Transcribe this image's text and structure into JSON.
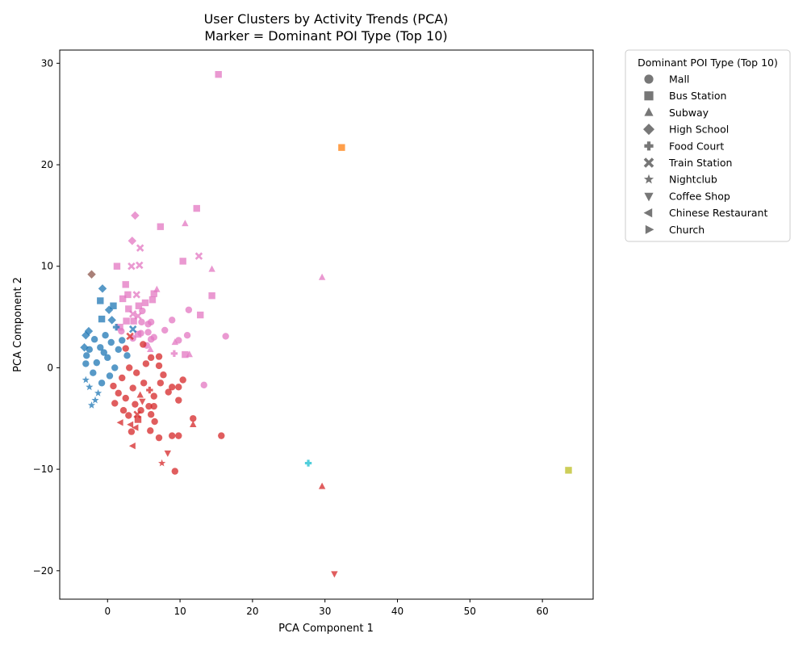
{
  "chart_data": {
    "type": "scatter",
    "title": "User Clusters by Activity Trends (PCA)",
    "subtitle": "Marker = Dominant POI Type (Top 10)",
    "xlabel": "PCA Component 1",
    "ylabel": "PCA Component 2",
    "xlim": [
      -6.6,
      67.0
    ],
    "ylim": [
      -22.8,
      31.3
    ],
    "xticks": [
      0,
      10,
      20,
      30,
      40,
      50,
      60
    ],
    "yticks": [
      -20,
      -10,
      0,
      10,
      20,
      30
    ],
    "grid": false,
    "legend": {
      "title": "Dominant POI Type (Top 10)",
      "placement": "outside-top-right",
      "entries": [
        {
          "label": "Mall",
          "marker": "circle"
        },
        {
          "label": "Bus Station",
          "marker": "square"
        },
        {
          "label": "Subway",
          "marker": "triangle-up"
        },
        {
          "label": "High School",
          "marker": "diamond"
        },
        {
          "label": "Food Court",
          "marker": "plus"
        },
        {
          "label": "Train Station",
          "marker": "x"
        },
        {
          "label": "Nightclub",
          "marker": "star"
        },
        {
          "label": "Coffee Shop",
          "marker": "triangle-down"
        },
        {
          "label": "Chinese Restaurant",
          "marker": "triangle-left"
        },
        {
          "label": "Church",
          "marker": "triangle-right"
        }
      ]
    },
    "cluster_colors": {
      "blue": "#1f77b4",
      "red": "#d62728",
      "pink": "#e377c2",
      "orange": "#ff7f0e",
      "brown": "#8c564b",
      "cyan": "#17becf",
      "olive": "#bcbd22"
    },
    "points": [
      {
        "x": 63.6,
        "y": -10.1,
        "marker": "square",
        "color": "olive"
      },
      {
        "x": 32.3,
        "y": 21.7,
        "marker": "square",
        "color": "orange"
      },
      {
        "x": 27.7,
        "y": -9.4,
        "marker": "plus",
        "color": "cyan"
      },
      {
        "x": -2.2,
        "y": 9.2,
        "marker": "diamond",
        "color": "brown"
      },
      {
        "x": 31.3,
        "y": -20.3,
        "marker": "triangle-down",
        "color": "red"
      },
      {
        "x": 29.6,
        "y": -11.7,
        "marker": "triangle-up",
        "color": "red"
      },
      {
        "x": 15.3,
        "y": 28.9,
        "marker": "square",
        "color": "pink"
      },
      {
        "x": 12.3,
        "y": 15.7,
        "marker": "square",
        "color": "pink"
      },
      {
        "x": 3.8,
        "y": 15.0,
        "marker": "diamond",
        "color": "pink"
      },
      {
        "x": 10.7,
        "y": 14.2,
        "marker": "triangle-up",
        "color": "pink"
      },
      {
        "x": 7.3,
        "y": 13.9,
        "marker": "square",
        "color": "pink"
      },
      {
        "x": 3.4,
        "y": 12.5,
        "marker": "diamond",
        "color": "pink"
      },
      {
        "x": 4.5,
        "y": 11.8,
        "marker": "x",
        "color": "pink"
      },
      {
        "x": 12.6,
        "y": 11.0,
        "marker": "x",
        "color": "pink"
      },
      {
        "x": 10.4,
        "y": 10.5,
        "marker": "square",
        "color": "pink"
      },
      {
        "x": 4.4,
        "y": 10.1,
        "marker": "x",
        "color": "pink"
      },
      {
        "x": 3.3,
        "y": 10.0,
        "marker": "x",
        "color": "pink"
      },
      {
        "x": 1.3,
        "y": 10.0,
        "marker": "square",
        "color": "pink"
      },
      {
        "x": 14.4,
        "y": 9.7,
        "marker": "triangle-up",
        "color": "pink"
      },
      {
        "x": 29.6,
        "y": 8.9,
        "marker": "triangle-up",
        "color": "pink"
      },
      {
        "x": 2.5,
        "y": 8.2,
        "marker": "square",
        "color": "pink"
      },
      {
        "x": 6.8,
        "y": 7.7,
        "marker": "triangle-up",
        "color": "pink"
      },
      {
        "x": 6.4,
        "y": 7.3,
        "marker": "square",
        "color": "pink"
      },
      {
        "x": 2.8,
        "y": 7.2,
        "marker": "square",
        "color": "pink"
      },
      {
        "x": 4.0,
        "y": 7.2,
        "marker": "x",
        "color": "pink"
      },
      {
        "x": 14.4,
        "y": 7.1,
        "marker": "square",
        "color": "pink"
      },
      {
        "x": 2.1,
        "y": 6.8,
        "marker": "square",
        "color": "pink"
      },
      {
        "x": 6.2,
        "y": 6.7,
        "marker": "square",
        "color": "pink"
      },
      {
        "x": 5.2,
        "y": 6.4,
        "marker": "square",
        "color": "pink"
      },
      {
        "x": 4.3,
        "y": 6.1,
        "marker": "square",
        "color": "pink"
      },
      {
        "x": 2.9,
        "y": 5.8,
        "marker": "square",
        "color": "pink"
      },
      {
        "x": 11.2,
        "y": 5.7,
        "marker": "circle",
        "color": "pink"
      },
      {
        "x": 4.8,
        "y": 5.6,
        "marker": "circle",
        "color": "pink"
      },
      {
        "x": 3.5,
        "y": 5.3,
        "marker": "x",
        "color": "pink"
      },
      {
        "x": 12.8,
        "y": 5.2,
        "marker": "square",
        "color": "pink"
      },
      {
        "x": 4.2,
        "y": 5.1,
        "marker": "x",
        "color": "pink"
      },
      {
        "x": 8.9,
        "y": 4.7,
        "marker": "circle",
        "color": "pink"
      },
      {
        "x": 2.6,
        "y": 4.6,
        "marker": "square",
        "color": "pink"
      },
      {
        "x": 3.6,
        "y": 4.6,
        "marker": "square",
        "color": "pink"
      },
      {
        "x": 4.7,
        "y": 4.5,
        "marker": "circle",
        "color": "pink"
      },
      {
        "x": 6.0,
        "y": 4.5,
        "marker": "circle",
        "color": "pink"
      },
      {
        "x": 5.6,
        "y": 4.3,
        "marker": "circle",
        "color": "pink"
      },
      {
        "x": 1.7,
        "y": 4.0,
        "marker": "square",
        "color": "pink"
      },
      {
        "x": 7.9,
        "y": 3.7,
        "marker": "circle",
        "color": "pink"
      },
      {
        "x": 1.9,
        "y": 3.6,
        "marker": "circle",
        "color": "pink"
      },
      {
        "x": 5.6,
        "y": 3.5,
        "marker": "circle",
        "color": "pink"
      },
      {
        "x": 4.6,
        "y": 3.4,
        "marker": "circle",
        "color": "pink"
      },
      {
        "x": 4.2,
        "y": 3.3,
        "marker": "square",
        "color": "pink"
      },
      {
        "x": 11.0,
        "y": 3.2,
        "marker": "circle",
        "color": "pink"
      },
      {
        "x": 16.3,
        "y": 3.1,
        "marker": "circle",
        "color": "pink"
      },
      {
        "x": 6.4,
        "y": 3.0,
        "marker": "circle",
        "color": "pink"
      },
      {
        "x": 3.5,
        "y": 2.9,
        "marker": "circle",
        "color": "pink"
      },
      {
        "x": 6.0,
        "y": 2.8,
        "marker": "circle",
        "color": "pink"
      },
      {
        "x": 9.8,
        "y": 2.7,
        "marker": "circle",
        "color": "pink"
      },
      {
        "x": 9.3,
        "y": 2.5,
        "marker": "triangle-up",
        "color": "pink"
      },
      {
        "x": 5.4,
        "y": 2.2,
        "marker": "circle",
        "color": "pink"
      },
      {
        "x": 5.9,
        "y": 1.8,
        "marker": "triangle-up",
        "color": "pink"
      },
      {
        "x": 9.2,
        "y": 1.4,
        "marker": "plus",
        "color": "pink"
      },
      {
        "x": 10.7,
        "y": 1.3,
        "marker": "square",
        "color": "pink"
      },
      {
        "x": 11.3,
        "y": 1.3,
        "marker": "triangle-up",
        "color": "pink"
      },
      {
        "x": 13.3,
        "y": -1.7,
        "marker": "circle",
        "color": "pink"
      },
      {
        "x": -0.7,
        "y": 7.8,
        "marker": "diamond",
        "color": "blue"
      },
      {
        "x": -1.0,
        "y": 6.6,
        "marker": "square",
        "color": "blue"
      },
      {
        "x": 0.8,
        "y": 6.1,
        "marker": "square",
        "color": "blue"
      },
      {
        "x": 0.2,
        "y": 5.7,
        "marker": "diamond",
        "color": "blue"
      },
      {
        "x": -0.8,
        "y": 4.8,
        "marker": "square",
        "color": "blue"
      },
      {
        "x": 0.6,
        "y": 4.7,
        "marker": "diamond",
        "color": "blue"
      },
      {
        "x": -2.6,
        "y": 3.6,
        "marker": "diamond",
        "color": "blue"
      },
      {
        "x": -3.0,
        "y": 3.2,
        "marker": "diamond",
        "color": "blue"
      },
      {
        "x": -3.2,
        "y": 2.0,
        "marker": "diamond",
        "color": "blue"
      },
      {
        "x": -2.9,
        "y": 1.2,
        "marker": "circle",
        "color": "blue"
      },
      {
        "x": -3.0,
        "y": 0.4,
        "marker": "circle",
        "color": "blue"
      },
      {
        "x": -2.5,
        "y": -1.9,
        "marker": "star",
        "color": "blue"
      },
      {
        "x": -2.2,
        "y": -3.7,
        "marker": "star",
        "color": "blue"
      },
      {
        "x": -1.7,
        "y": -3.2,
        "marker": "star",
        "color": "blue"
      },
      {
        "x": -3.0,
        "y": -1.2,
        "marker": "star",
        "color": "blue"
      },
      {
        "x": -1.3,
        "y": -2.5,
        "marker": "star",
        "color": "blue"
      },
      {
        "x": 3.5,
        "y": 3.8,
        "marker": "x",
        "color": "blue"
      },
      {
        "x": 1.2,
        "y": 4.0,
        "marker": "plus",
        "color": "blue"
      },
      {
        "x": -1.0,
        "y": 2.0,
        "marker": "circle",
        "color": "blue"
      },
      {
        "x": -0.5,
        "y": 1.5,
        "marker": "circle",
        "color": "blue"
      },
      {
        "x": 0.0,
        "y": 1.0,
        "marker": "circle",
        "color": "blue"
      },
      {
        "x": -1.5,
        "y": 0.5,
        "marker": "circle",
        "color": "blue"
      },
      {
        "x": 0.5,
        "y": 2.5,
        "marker": "circle",
        "color": "blue"
      },
      {
        "x": 1.0,
        "y": 0.0,
        "marker": "circle",
        "color": "blue"
      },
      {
        "x": -2.0,
        "y": -0.5,
        "marker": "circle",
        "color": "blue"
      },
      {
        "x": 1.5,
        "y": 1.8,
        "marker": "circle",
        "color": "blue"
      },
      {
        "x": 2.0,
        "y": 2.7,
        "marker": "circle",
        "color": "blue"
      },
      {
        "x": -0.3,
        "y": 3.2,
        "marker": "circle",
        "color": "blue"
      },
      {
        "x": -1.8,
        "y": 2.8,
        "marker": "circle",
        "color": "blue"
      },
      {
        "x": 0.3,
        "y": -0.8,
        "marker": "circle",
        "color": "blue"
      },
      {
        "x": -0.8,
        "y": -1.5,
        "marker": "circle",
        "color": "blue"
      },
      {
        "x": 2.7,
        "y": 1.2,
        "marker": "circle",
        "color": "blue"
      },
      {
        "x": -2.5,
        "y": 1.8,
        "marker": "circle",
        "color": "blue"
      },
      {
        "x": 9.3,
        "y": -10.2,
        "marker": "circle",
        "color": "red"
      },
      {
        "x": 7.5,
        "y": -9.4,
        "marker": "star",
        "color": "red"
      },
      {
        "x": 8.3,
        "y": -8.4,
        "marker": "triangle-down",
        "color": "red"
      },
      {
        "x": 3.5,
        "y": -7.7,
        "marker": "triangle-left",
        "color": "red"
      },
      {
        "x": 15.7,
        "y": -6.7,
        "marker": "circle",
        "color": "red"
      },
      {
        "x": 9.8,
        "y": -6.7,
        "marker": "circle",
        "color": "red"
      },
      {
        "x": 8.9,
        "y": -6.7,
        "marker": "circle",
        "color": "red"
      },
      {
        "x": 7.1,
        "y": -6.9,
        "marker": "circle",
        "color": "red"
      },
      {
        "x": 3.3,
        "y": -6.3,
        "marker": "circle",
        "color": "red"
      },
      {
        "x": 5.9,
        "y": -6.2,
        "marker": "circle",
        "color": "red"
      },
      {
        "x": 11.8,
        "y": -5.6,
        "marker": "triangle-up",
        "color": "red"
      },
      {
        "x": 1.8,
        "y": -5.4,
        "marker": "triangle-left",
        "color": "red"
      },
      {
        "x": 6.5,
        "y": -5.3,
        "marker": "circle",
        "color": "red"
      },
      {
        "x": 11.8,
        "y": -5.0,
        "marker": "circle",
        "color": "red"
      },
      {
        "x": 4.2,
        "y": -5.1,
        "marker": "square",
        "color": "red"
      },
      {
        "x": 2.9,
        "y": -4.7,
        "marker": "circle",
        "color": "red"
      },
      {
        "x": 6.0,
        "y": -4.6,
        "marker": "circle",
        "color": "red"
      },
      {
        "x": 4.6,
        "y": -4.2,
        "marker": "circle",
        "color": "red"
      },
      {
        "x": 5.7,
        "y": -3.8,
        "marker": "circle",
        "color": "red"
      },
      {
        "x": 6.4,
        "y": -3.8,
        "marker": "circle",
        "color": "red"
      },
      {
        "x": 9.8,
        "y": -3.2,
        "marker": "circle",
        "color": "red"
      },
      {
        "x": 6.4,
        "y": -2.8,
        "marker": "circle",
        "color": "red"
      },
      {
        "x": 8.4,
        "y": -2.4,
        "marker": "circle",
        "color": "red"
      },
      {
        "x": 8.9,
        "y": -1.9,
        "marker": "circle",
        "color": "red"
      },
      {
        "x": 9.8,
        "y": -1.9,
        "marker": "circle",
        "color": "red"
      },
      {
        "x": 7.3,
        "y": -1.5,
        "marker": "circle",
        "color": "red"
      },
      {
        "x": 10.4,
        "y": -1.2,
        "marker": "circle",
        "color": "red"
      },
      {
        "x": 7.7,
        "y": -0.7,
        "marker": "circle",
        "color": "red"
      },
      {
        "x": 7.1,
        "y": 0.2,
        "marker": "circle",
        "color": "red"
      },
      {
        "x": 7.1,
        "y": 1.1,
        "marker": "circle",
        "color": "red"
      },
      {
        "x": 6.0,
        "y": 1.0,
        "marker": "circle",
        "color": "red"
      },
      {
        "x": 4.9,
        "y": 2.3,
        "marker": "circle",
        "color": "red"
      },
      {
        "x": 2.5,
        "y": 1.9,
        "marker": "circle",
        "color": "red"
      },
      {
        "x": 3.0,
        "y": 0.0,
        "marker": "circle",
        "color": "red"
      },
      {
        "x": 2.0,
        "y": -1.0,
        "marker": "circle",
        "color": "red"
      },
      {
        "x": 3.5,
        "y": -2.0,
        "marker": "circle",
        "color": "red"
      },
      {
        "x": 1.5,
        "y": -2.5,
        "marker": "circle",
        "color": "red"
      },
      {
        "x": 4.0,
        "y": -0.5,
        "marker": "circle",
        "color": "red"
      },
      {
        "x": 2.5,
        "y": -3.0,
        "marker": "circle",
        "color": "red"
      },
      {
        "x": 5.0,
        "y": -1.5,
        "marker": "circle",
        "color": "red"
      },
      {
        "x": 1.0,
        "y": -3.5,
        "marker": "circle",
        "color": "red"
      },
      {
        "x": 3.8,
        "y": -3.6,
        "marker": "circle",
        "color": "red"
      },
      {
        "x": 5.3,
        "y": 0.4,
        "marker": "circle",
        "color": "red"
      },
      {
        "x": 0.8,
        "y": -1.8,
        "marker": "circle",
        "color": "red"
      },
      {
        "x": 2.2,
        "y": -4.2,
        "marker": "circle",
        "color": "red"
      },
      {
        "x": 4.5,
        "y": -2.7,
        "marker": "triangle-up",
        "color": "red"
      },
      {
        "x": 3.2,
        "y": -5.6,
        "marker": "triangle-left",
        "color": "red"
      },
      {
        "x": 3.9,
        "y": -5.9,
        "marker": "triangle-left",
        "color": "red"
      },
      {
        "x": 4.8,
        "y": -3.3,
        "marker": "triangle-down",
        "color": "red"
      },
      {
        "x": 5.8,
        "y": -2.2,
        "marker": "plus",
        "color": "red"
      },
      {
        "x": 4.1,
        "y": -4.6,
        "marker": "x",
        "color": "red"
      },
      {
        "x": 3.1,
        "y": 3.1,
        "marker": "x",
        "color": "red"
      }
    ]
  }
}
